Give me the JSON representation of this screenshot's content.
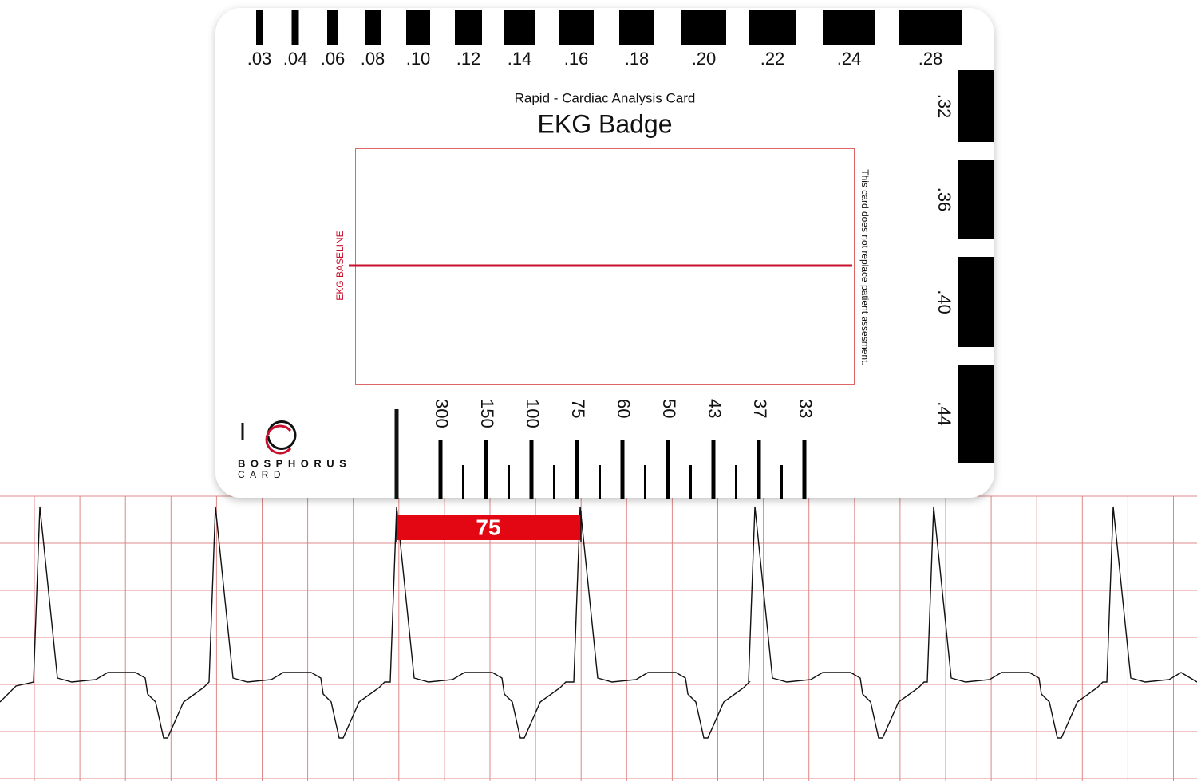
{
  "card": {
    "top_scale": [
      ".03",
      ".04",
      ".06",
      ".08",
      ".10",
      ".12",
      ".14",
      ".16",
      ".18",
      ".20",
      ".22",
      ".24",
      ".28"
    ],
    "side_scale": [
      ".32",
      ".36",
      ".40",
      ".44"
    ],
    "subtitle": "Rapid - Cardiac Analysis Card",
    "title": "EKG Badge",
    "baseline_label": "EKG BASELINE",
    "disclaimer": "This card does not replace patient assesment.",
    "rate_scale": [
      "300",
      "150",
      "100",
      "75",
      "60",
      "50",
      "43",
      "37",
      "33"
    ],
    "brand": "BOSPHORUS",
    "brand_sub": "CARD"
  },
  "strip": {
    "measure_label": "75"
  }
}
